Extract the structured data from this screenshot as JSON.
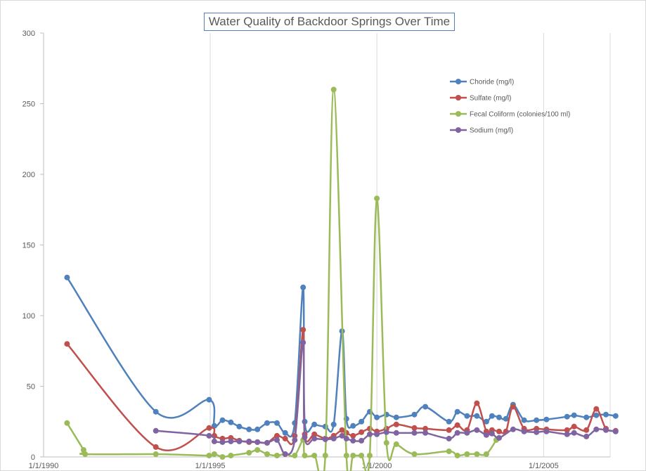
{
  "chart_data": {
    "type": "line",
    "title": "Water Quality of Backdoor Springs Over Time",
    "xlabel": "",
    "ylabel": "",
    "x_axis": {
      "type": "date",
      "min": "1990-01-01",
      "max": "2006-12-31",
      "ticks": [
        "1990-01-01",
        "1995-01-01",
        "2000-01-01",
        "2005-01-01"
      ],
      "tick_labels": [
        "1/1/1990",
        "1/1/1995",
        "1/1/2000",
        "1/1/2005"
      ]
    },
    "ylim": [
      0,
      300
    ],
    "y_ticks": [
      0,
      50,
      100,
      150,
      200,
      250,
      300
    ],
    "grid": {
      "vertical": true,
      "horizontal": false
    },
    "legend_position": "top-right",
    "series": [
      {
        "name": "Choride (mg/l)",
        "color": "#4f81bd",
        "points": [
          [
            "1990-09-15",
            127
          ],
          [
            "1993-05-15",
            32
          ],
          [
            "1994-12-20",
            40.5
          ],
          [
            "1995-02-15",
            22
          ],
          [
            "1995-05-15",
            26
          ],
          [
            "1995-08-15",
            24.5
          ],
          [
            "1995-11-15",
            21.5
          ],
          [
            "1996-03-01",
            19.5
          ],
          [
            "1996-06-01",
            19.5
          ],
          [
            "1996-09-15",
            24
          ],
          [
            "1997-01-01",
            24
          ],
          [
            "1997-04-01",
            17
          ],
          [
            "1997-07-15",
            24
          ],
          [
            "1997-10-15",
            120
          ],
          [
            "1997-11-01",
            25
          ],
          [
            "1998-02-15",
            23
          ],
          [
            "1998-06-15",
            21.5
          ],
          [
            "1998-09-15",
            23
          ],
          [
            "1998-12-15",
            89
          ],
          [
            "1999-02-01",
            27
          ],
          [
            "1999-04-15",
            22
          ],
          [
            "1999-07-15",
            25
          ],
          [
            "1999-10-15",
            32
          ],
          [
            "2000-01-01",
            28
          ],
          [
            "2000-04-15",
            30
          ],
          [
            "2000-08-01",
            28
          ],
          [
            "2001-02-15",
            30
          ],
          [
            "2001-06-15",
            35.5
          ],
          [
            "2002-03-01",
            25
          ],
          [
            "2002-06-01",
            32
          ],
          [
            "2002-09-15",
            29
          ],
          [
            "2003-01-01",
            29
          ],
          [
            "2003-04-15",
            25
          ],
          [
            "2003-06-15",
            29
          ],
          [
            "2003-09-01",
            28
          ],
          [
            "2003-11-15",
            27
          ],
          [
            "2004-02-01",
            37
          ],
          [
            "2004-06-01",
            26
          ],
          [
            "2004-10-15",
            26
          ],
          [
            "2005-02-01",
            26.5
          ],
          [
            "2005-09-15",
            28.5
          ],
          [
            "2005-12-01",
            29.5
          ],
          [
            "2006-04-15",
            28
          ],
          [
            "2006-08-01",
            29.5
          ],
          [
            "2006-11-15",
            30
          ],
          [
            "2007-03-01",
            29
          ]
        ]
      },
      {
        "name": "Sulfate (mg/l)",
        "color": "#c0504d",
        "points": [
          [
            "1990-09-15",
            80
          ],
          [
            "1993-05-15",
            7
          ],
          [
            "1994-12-20",
            20.5
          ],
          [
            "1995-02-15",
            15
          ],
          [
            "1995-05-15",
            13
          ],
          [
            "1995-08-15",
            13.5
          ],
          [
            "1995-11-15",
            11.5
          ],
          [
            "1996-03-01",
            10.5
          ],
          [
            "1996-06-01",
            10.5
          ],
          [
            "1996-09-15",
            10
          ],
          [
            "1997-01-01",
            15
          ],
          [
            "1997-04-01",
            13
          ],
          [
            "1997-07-15",
            15
          ],
          [
            "1997-10-15",
            90
          ],
          [
            "1997-11-01",
            16
          ],
          [
            "1998-02-15",
            16
          ],
          [
            "1998-06-15",
            13
          ],
          [
            "1998-09-15",
            15
          ],
          [
            "1998-12-15",
            19
          ],
          [
            "1999-02-01",
            17
          ],
          [
            "1999-04-15",
            15
          ],
          [
            "1999-07-15",
            17.5
          ],
          [
            "1999-10-15",
            20
          ],
          [
            "2000-01-01",
            18
          ],
          [
            "2000-04-15",
            20
          ],
          [
            "2000-08-01",
            23
          ],
          [
            "2001-02-15",
            20.5
          ],
          [
            "2001-06-15",
            20
          ],
          [
            "2002-03-01",
            19
          ],
          [
            "2002-06-01",
            22.5
          ],
          [
            "2002-09-15",
            19
          ],
          [
            "2003-01-01",
            38
          ],
          [
            "2003-04-15",
            18
          ],
          [
            "2003-06-15",
            19
          ],
          [
            "2003-09-01",
            18
          ],
          [
            "2003-11-15",
            18
          ],
          [
            "2004-02-01",
            35.5
          ],
          [
            "2004-06-01",
            20
          ],
          [
            "2004-10-15",
            20
          ],
          [
            "2005-02-01",
            19.5
          ],
          [
            "2005-09-15",
            19
          ],
          [
            "2005-12-01",
            21.5
          ],
          [
            "2006-04-15",
            19
          ],
          [
            "2006-08-01",
            34
          ],
          [
            "2006-11-15",
            20
          ],
          [
            "2007-03-01",
            18.5
          ]
        ]
      },
      {
        "name": "Fecal Coliform (colonies/100 ml)",
        "color": "#9bbb59",
        "points": [
          [
            "1990-09-15",
            24
          ],
          [
            "1991-03-15",
            5
          ],
          [
            "1991-04-01",
            2
          ],
          [
            "1993-05-15",
            2
          ],
          [
            "1994-12-20",
            1
          ],
          [
            "1995-02-15",
            2
          ],
          [
            "1995-05-15",
            0
          ],
          [
            "1995-08-15",
            1
          ],
          [
            "1996-03-01",
            3
          ],
          [
            "1996-06-01",
            5
          ],
          [
            "1996-09-15",
            2
          ],
          [
            "1997-01-01",
            1
          ],
          [
            "1997-04-01",
            2
          ],
          [
            "1997-07-15",
            1
          ],
          [
            "1997-10-15",
            12
          ],
          [
            "1997-11-01",
            1
          ],
          [
            "1998-02-15",
            1
          ],
          [
            "1998-06-15",
            1
          ],
          [
            "1998-09-15",
            260
          ],
          [
            "1999-02-01",
            1
          ],
          [
            "1999-04-15",
            1
          ],
          [
            "1999-07-15",
            1
          ],
          [
            "1999-10-15",
            1
          ],
          [
            "2000-01-01",
            183
          ],
          [
            "2000-04-15",
            10
          ],
          [
            "2000-08-01",
            9
          ],
          [
            "2001-02-15",
            2
          ],
          [
            "2002-03-01",
            4
          ],
          [
            "2002-06-01",
            1
          ],
          [
            "2002-09-15",
            2
          ],
          [
            "2003-01-01",
            2
          ],
          [
            "2003-04-15",
            2
          ],
          [
            "2003-08-01",
            12
          ]
        ]
      },
      {
        "name": "Sodium (mg/l)",
        "color": "#8064a2",
        "points": [
          [
            "1993-05-15",
            18.5
          ],
          [
            "1994-12-20",
            15
          ],
          [
            "1995-02-15",
            11
          ],
          [
            "1995-05-15",
            10.5
          ],
          [
            "1995-08-15",
            11
          ],
          [
            "1995-11-15",
            11
          ],
          [
            "1996-03-01",
            11
          ],
          [
            "1996-06-01",
            10.5
          ],
          [
            "1996-09-15",
            10
          ],
          [
            "1997-01-01",
            12
          ],
          [
            "1997-04-01",
            2
          ],
          [
            "1997-07-15",
            12
          ],
          [
            "1997-10-15",
            81
          ],
          [
            "1997-11-01",
            14
          ],
          [
            "1998-02-15",
            13
          ],
          [
            "1998-06-15",
            12.5
          ],
          [
            "1998-09-15",
            13
          ],
          [
            "1998-12-15",
            15
          ],
          [
            "1999-02-01",
            13
          ],
          [
            "1999-04-15",
            11.5
          ],
          [
            "1999-07-15",
            11.5
          ],
          [
            "1999-10-15",
            16
          ],
          [
            "2000-01-01",
            16
          ],
          [
            "2000-04-15",
            17.5
          ],
          [
            "2000-08-01",
            17
          ],
          [
            "2001-02-15",
            17
          ],
          [
            "2001-06-15",
            17
          ],
          [
            "2002-03-01",
            13
          ],
          [
            "2002-06-01",
            17
          ],
          [
            "2002-09-15",
            17
          ],
          [
            "2003-01-01",
            19
          ],
          [
            "2003-04-15",
            15.5
          ],
          [
            "2003-06-15",
            16.5
          ],
          [
            "2003-09-01",
            13.5
          ],
          [
            "2004-02-01",
            19.5
          ],
          [
            "2004-06-01",
            18
          ],
          [
            "2004-10-15",
            17.5
          ],
          [
            "2005-02-01",
            18
          ],
          [
            "2005-09-15",
            16
          ],
          [
            "2005-12-01",
            17
          ],
          [
            "2006-04-15",
            14.5
          ],
          [
            "2006-08-01",
            19.5
          ],
          [
            "2006-11-15",
            19
          ],
          [
            "2007-03-01",
            18
          ]
        ]
      }
    ]
  }
}
